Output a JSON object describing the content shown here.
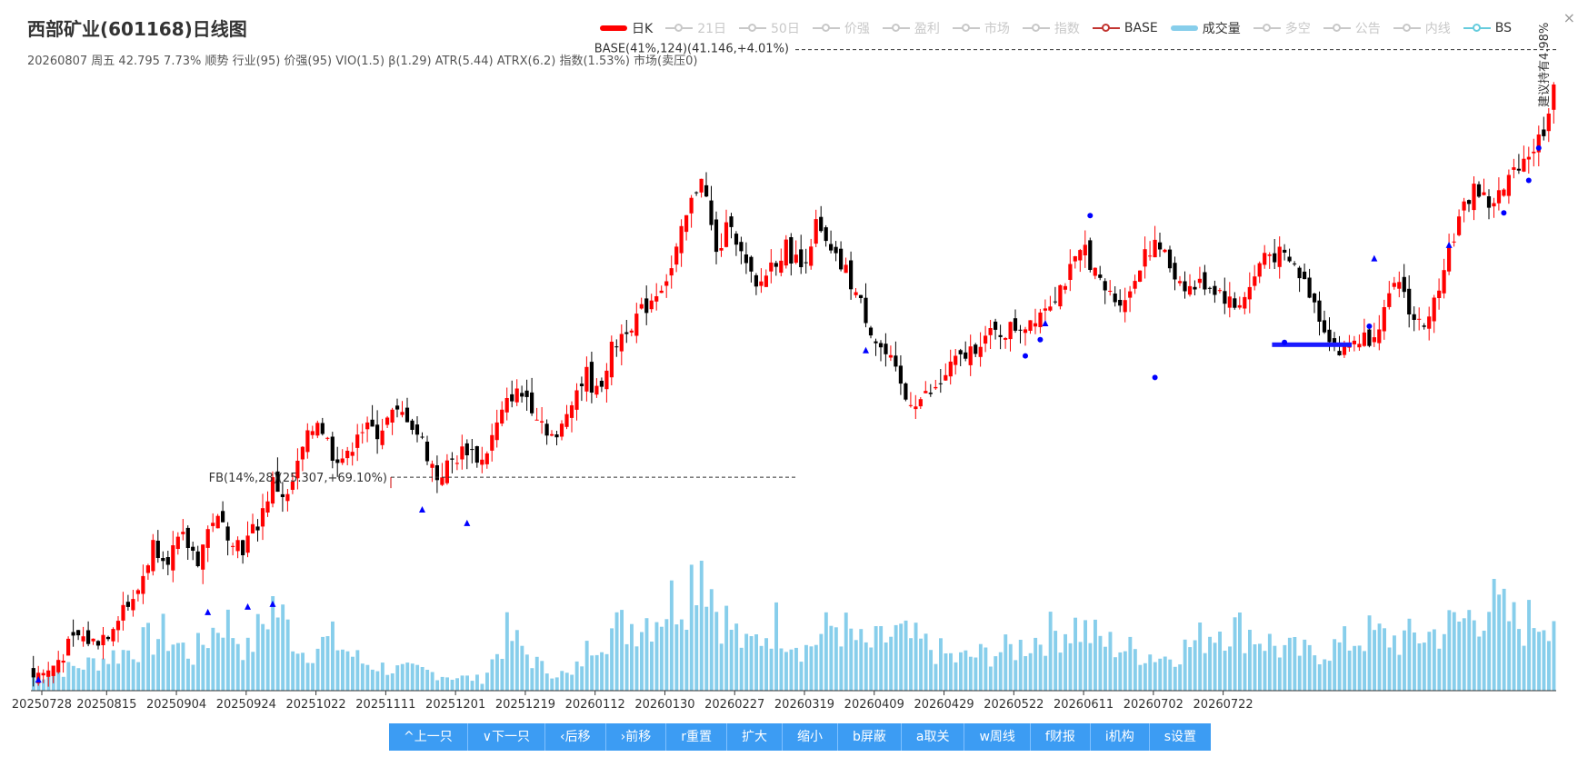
{
  "header": {
    "title": "西部矿业(601168)日线图",
    "subtitle": "20260807 周五 42.795 7.73% 顺势 行业(95) 价强(95) VIO(1.5) β(1.29) ATR(5.44) ATRX(6.2) 指数(1.53%) 市场(卖压0)",
    "close_label": "×"
  },
  "legend": [
    {
      "label": "日K",
      "active": true,
      "swatch": "rect",
      "color": "#ff0000"
    },
    {
      "label": "21日",
      "active": false,
      "swatch": "line",
      "color": "#c8c8c8"
    },
    {
      "label": "50日",
      "active": false,
      "swatch": "line",
      "color": "#c8c8c8"
    },
    {
      "label": "价强",
      "active": false,
      "swatch": "line",
      "color": "#c8c8c8"
    },
    {
      "label": "盈利",
      "active": false,
      "swatch": "line",
      "color": "#c8c8c8"
    },
    {
      "label": "市场",
      "active": false,
      "swatch": "line",
      "color": "#c8c8c8"
    },
    {
      "label": "指数",
      "active": false,
      "swatch": "line",
      "color": "#c8c8c8"
    },
    {
      "label": "BASE",
      "active": true,
      "swatch": "line",
      "color": "#c23531"
    },
    {
      "label": "成交量",
      "active": true,
      "swatch": "rect",
      "color": "#87ceeb"
    },
    {
      "label": "多空",
      "active": false,
      "swatch": "line",
      "color": "#c8c8c8"
    },
    {
      "label": "公告",
      "active": false,
      "swatch": "line",
      "color": "#c8c8c8"
    },
    {
      "label": "内线",
      "active": false,
      "swatch": "line",
      "color": "#c8c8c8"
    },
    {
      "label": "BS",
      "active": true,
      "swatch": "line",
      "color": "#66ccdd"
    }
  ],
  "toolbar": [
    "^上一只",
    "∨下一只",
    "‹后移",
    "›前移",
    "r重置",
    "扩大",
    "缩小",
    "b屏蔽",
    "a取关",
    "w周线",
    "f财报",
    "i机构",
    "s设置"
  ],
  "colors": {
    "up": "#ff0000",
    "down": "#000000",
    "volume": "#87ceeb",
    "marker": "#0000ff"
  },
  "chart_data": {
    "type": "candlestick",
    "x_ticks": [
      "20250728",
      "20250815",
      "20250904",
      "20250924",
      "20251022",
      "20251111",
      "20251201",
      "20251219",
      "20260112",
      "20260130",
      "20260227",
      "20260319",
      "20260409",
      "20260429",
      "20260522",
      "20260611",
      "20260702",
      "20260722"
    ],
    "price_range": [
      17.4,
      41.3
    ],
    "close_path": [
      [
        0,
        18.0
      ],
      [
        3,
        18.1
      ],
      [
        6,
        18.8
      ],
      [
        9,
        19.4
      ],
      [
        12,
        19.2
      ],
      [
        15,
        19.6
      ],
      [
        18,
        20.6
      ],
      [
        20,
        20.6
      ],
      [
        24,
        22.8
      ],
      [
        27,
        22.4
      ],
      [
        30,
        23.0
      ],
      [
        33,
        22.3
      ],
      [
        36,
        23.8
      ],
      [
        39,
        23.3
      ],
      [
        42,
        22.7
      ],
      [
        45,
        23.6
      ],
      [
        48,
        25.1
      ],
      [
        51,
        24.5
      ],
      [
        54,
        26.3
      ],
      [
        57,
        27.5
      ],
      [
        60,
        26.2
      ],
      [
        63,
        26.0
      ],
      [
        65,
        27.1
      ],
      [
        69,
        27.0
      ],
      [
        72,
        27.6
      ],
      [
        75,
        27.6
      ],
      [
        78,
        26.6
      ],
      [
        81,
        25.3
      ],
      [
        84,
        25.9
      ],
      [
        87,
        26.4
      ],
      [
        90,
        25.9
      ],
      [
        93,
        27.2
      ],
      [
        96,
        28.4
      ],
      [
        99,
        28.3
      ],
      [
        102,
        27.4
      ],
      [
        105,
        26.6
      ],
      [
        108,
        28.3
      ],
      [
        111,
        29.1
      ],
      [
        113,
        28.4
      ],
      [
        116,
        30.0
      ],
      [
        119,
        30.9
      ],
      [
        122,
        31.4
      ],
      [
        125,
        32.2
      ],
      [
        128,
        33.0
      ],
      [
        131,
        34.9
      ],
      [
        134,
        36.6
      ],
      [
        137,
        33.5
      ],
      [
        140,
        34.9
      ],
      [
        142,
        33.5
      ],
      [
        145,
        32.2
      ],
      [
        148,
        33.2
      ],
      [
        151,
        33.8
      ],
      [
        154,
        33.1
      ],
      [
        157,
        34.6
      ],
      [
        160,
        33.5
      ],
      [
        163,
        32.9
      ],
      [
        166,
        31.7
      ],
      [
        169,
        30.4
      ],
      [
        172,
        29.5
      ],
      [
        175,
        28.2
      ],
      [
        178,
        28.2
      ],
      [
        181,
        28.5
      ],
      [
        184,
        29.4
      ],
      [
        187,
        29.8
      ],
      [
        190,
        30.4
      ],
      [
        193,
        30.6
      ],
      [
        196,
        30.8
      ],
      [
        199,
        31.0
      ],
      [
        202,
        31.5
      ],
      [
        205,
        32.1
      ],
      [
        208,
        32.9
      ],
      [
        211,
        33.8
      ],
      [
        214,
        32.4
      ],
      [
        217,
        31.9
      ],
      [
        220,
        32.1
      ],
      [
        223,
        33.8
      ],
      [
        226,
        33.8
      ],
      [
        229,
        32.8
      ],
      [
        232,
        32.3
      ],
      [
        235,
        32.5
      ],
      [
        238,
        32.2
      ],
      [
        241,
        31.6
      ],
      [
        244,
        32.3
      ],
      [
        247,
        33.6
      ],
      [
        250,
        33.5
      ],
      [
        253,
        33.1
      ],
      [
        256,
        32.2
      ],
      [
        259,
        30.9
      ],
      [
        262,
        29.9
      ],
      [
        265,
        30.4
      ],
      [
        268,
        30.5
      ],
      [
        271,
        31.4
      ],
      [
        274,
        32.6
      ],
      [
        277,
        31.1
      ],
      [
        280,
        31.0
      ],
      [
        283,
        33.3
      ],
      [
        286,
        34.8
      ],
      [
        289,
        36.1
      ],
      [
        292,
        35.4
      ],
      [
        295,
        35.9
      ],
      [
        298,
        37.0
      ],
      [
        301,
        37.5
      ],
      [
        303,
        38.2
      ],
      [
        305,
        39.9
      ]
    ],
    "volume_range": [
      0,
      1.0
    ],
    "volume_path": [
      [
        0,
        0.1
      ],
      [
        10,
        0.18
      ],
      [
        20,
        0.3
      ],
      [
        26,
        0.4
      ],
      [
        32,
        0.25
      ],
      [
        38,
        0.52
      ],
      [
        43,
        0.28
      ],
      [
        48,
        0.62
      ],
      [
        54,
        0.28
      ],
      [
        60,
        0.36
      ],
      [
        66,
        0.2
      ],
      [
        72,
        0.15
      ],
      [
        78,
        0.14
      ],
      [
        84,
        0.1
      ],
      [
        90,
        0.08
      ],
      [
        95,
        0.4
      ],
      [
        102,
        0.16
      ],
      [
        108,
        0.1
      ],
      [
        113,
        0.4
      ],
      [
        119,
        0.46
      ],
      [
        125,
        0.55
      ],
      [
        131,
        0.72
      ],
      [
        134,
        1.0
      ],
      [
        137,
        0.6
      ],
      [
        143,
        0.3
      ],
      [
        149,
        0.48
      ],
      [
        155,
        0.3
      ],
      [
        161,
        0.48
      ],
      [
        167,
        0.3
      ],
      [
        173,
        0.4
      ],
      [
        179,
        0.32
      ],
      [
        185,
        0.22
      ],
      [
        191,
        0.26
      ],
      [
        197,
        0.3
      ],
      [
        203,
        0.4
      ],
      [
        209,
        0.46
      ],
      [
        215,
        0.34
      ],
      [
        221,
        0.28
      ],
      [
        227,
        0.24
      ],
      [
        232,
        0.32
      ],
      [
        238,
        0.46
      ],
      [
        244,
        0.42
      ],
      [
        250,
        0.3
      ],
      [
        256,
        0.26
      ],
      [
        262,
        0.32
      ],
      [
        268,
        0.4
      ],
      [
        274,
        0.36
      ],
      [
        280,
        0.4
      ],
      [
        286,
        0.48
      ],
      [
        292,
        0.62
      ],
      [
        298,
        0.46
      ],
      [
        303,
        0.54
      ],
      [
        305,
        0.56
      ]
    ],
    "annotations": [
      {
        "text": "FB(14%,28)(25.307,+69.10%)",
        "value": 25.307
      },
      {
        "text": "BASE(41%,124)(41.146,+4.01%)",
        "value": 41.146
      },
      {
        "text": "建议持有4.98%"
      }
    ]
  }
}
